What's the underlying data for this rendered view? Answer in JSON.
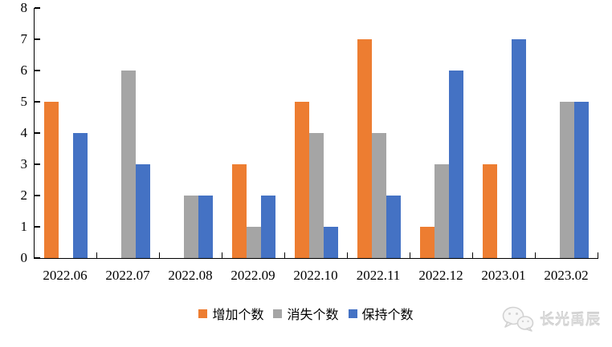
{
  "chart_data": {
    "type": "bar",
    "title": "",
    "xlabel": "",
    "ylabel": "",
    "categories": [
      "2022.06",
      "2022.07",
      "2022.08",
      "2022.09",
      "2022.10",
      "2022.11",
      "2022.12",
      "2023.01",
      "2023.02"
    ],
    "series": [
      {
        "name": "增加个数",
        "color": "#ED7D31",
        "values": [
          5,
          0,
          0,
          3,
          5,
          7,
          1,
          3,
          0
        ]
      },
      {
        "name": "消失个数",
        "color": "#A5A5A5",
        "values": [
          0,
          6,
          2,
          1,
          4,
          4,
          3,
          0,
          5
        ]
      },
      {
        "name": "保持个数",
        "color": "#4472C4",
        "values": [
          4,
          3,
          2,
          2,
          1,
          2,
          6,
          7,
          5
        ]
      }
    ],
    "ylim": [
      0,
      8
    ],
    "ytick_step": 1,
    "yticks": [
      "0",
      "1",
      "2",
      "3",
      "4",
      "5",
      "6",
      "7",
      "8"
    ],
    "grid": false,
    "legend_position": "bottom-center"
  },
  "watermark": {
    "text": "长光禹辰",
    "icon": "wechat-bubbles-icon",
    "color": "#d8d8d8"
  }
}
